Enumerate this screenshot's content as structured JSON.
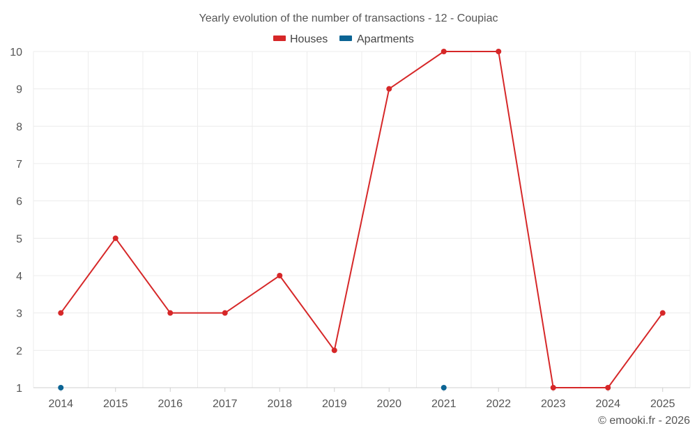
{
  "chart_data": {
    "type": "line",
    "title": "Yearly evolution of the number of transactions - 12 - Coupiac",
    "xlabel": "",
    "ylabel": "",
    "categories": [
      "2014",
      "2015",
      "2016",
      "2017",
      "2018",
      "2019",
      "2020",
      "2021",
      "2022",
      "2023",
      "2024",
      "2025"
    ],
    "ylim": [
      1,
      10
    ],
    "yticks": [
      "1",
      "2",
      "3",
      "4",
      "5",
      "6",
      "7",
      "8",
      "9",
      "10"
    ],
    "grid": true,
    "legend_position": "top-center",
    "series": [
      {
        "name": "Houses",
        "color": "#d62728",
        "values": [
          3,
          5,
          3,
          3,
          4,
          2,
          9,
          10,
          10,
          1,
          1,
          3
        ]
      },
      {
        "name": "Apartments",
        "color": "#0b6494",
        "values": [
          1,
          null,
          null,
          null,
          null,
          null,
          null,
          1,
          null,
          null,
          null,
          null
        ]
      }
    ]
  },
  "credit": "© emooki.fr - 2026"
}
